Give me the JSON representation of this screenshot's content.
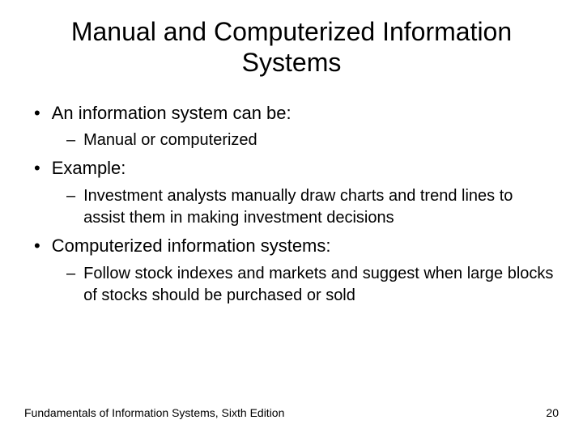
{
  "title": "Manual and Computerized Information Systems",
  "bullets": {
    "b1": "An information system can be:",
    "b1_1": "Manual or computerized",
    "b2": "Example:",
    "b2_1": "Investment analysts manually draw charts and trend lines to assist them in making investment decisions",
    "b3": "Computerized information systems:",
    "b3_1": "Follow stock indexes and markets and suggest when large blocks of stocks should be purchased or sold"
  },
  "footer": {
    "text": "Fundamentals of Information Systems, Sixth Edition",
    "page": "20"
  },
  "markers": {
    "l1": "•",
    "l2": "–"
  },
  "style": {
    "title_fontsize": 32,
    "l1_fontsize": 22,
    "l2_fontsize": 20,
    "footer_fontsize": 14,
    "text_color": "#000000",
    "background_color": "#ffffff"
  }
}
